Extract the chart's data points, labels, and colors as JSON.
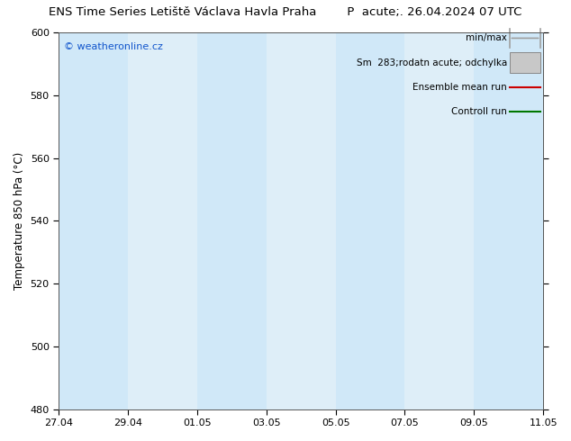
{
  "title_left": "ENS Time Series Letiště Václava Havla Praha",
  "title_right": "P  acute;. 26.04.2024 07 UTC",
  "ylabel": "Temperature 850 hPa (°C)",
  "ylim": [
    480,
    600
  ],
  "yticks": [
    480,
    500,
    520,
    540,
    560,
    580,
    600
  ],
  "x_start": "2024-04-27",
  "x_end": "2024-05-11",
  "x_tick_dates": [
    "2024-04-27",
    "2024-04-29",
    "2024-05-01",
    "2024-05-03",
    "2024-05-05",
    "2024-05-07",
    "2024-05-09",
    "2024-05-11"
  ],
  "x_tick_labels": [
    "27.04",
    "29.04",
    "01.05",
    "03.05",
    "05.05",
    "07.05",
    "09.05",
    "11.05"
  ],
  "shaded_bands": [
    [
      "2024-04-27",
      "2024-04-29"
    ],
    [
      "2024-05-01",
      "2024-05-03"
    ],
    [
      "2024-05-05",
      "2024-05-07"
    ],
    [
      "2024-05-09",
      "2024-05-11"
    ]
  ],
  "band_color": "#d0e8f8",
  "background_color": "#ffffff",
  "plot_bg_color": "#deeef8",
  "watermark": "© weatheronline.cz",
  "watermark_color": "#1155cc",
  "legend_labels": [
    "min/max",
    "Sm  283;rodatn acute; odchylka",
    "Ensemble mean run",
    "Controll run"
  ],
  "legend_line_colors": [
    "#a0a0a0",
    "#c8c8c8",
    "#cc0000",
    "#007700"
  ],
  "legend_fill_colors": [
    "none",
    "#d0d0d0",
    "none",
    "none"
  ],
  "title_fontsize": 9.5,
  "axis_label_fontsize": 8.5,
  "tick_fontsize": 8,
  "legend_fontsize": 7.5
}
